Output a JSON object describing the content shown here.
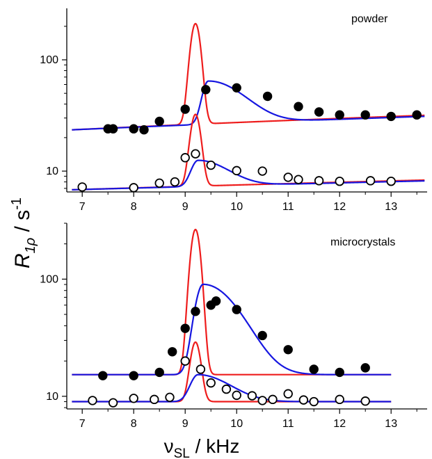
{
  "ylabel": {
    "main": "R",
    "sub": "1ρ",
    "unit_prefix": " / s",
    "unit_sup": "-1"
  },
  "xlabel": {
    "main": "ν",
    "sub": "SL",
    "unit": " / kHz"
  },
  "colors": {
    "fit_red": "#ee1c1c",
    "fit_blue": "#1616e0",
    "points": "#000000"
  },
  "chart_data": [
    {
      "type": "scatter",
      "panel": "top",
      "label": "powder",
      "x_range": [
        6.7,
        13.7
      ],
      "y_scale": "log",
      "y_range": [
        6.5,
        290
      ],
      "x_ticks": [
        "7",
        "8",
        "9",
        "10",
        "11",
        "12",
        "13"
      ],
      "y_ticks": [
        "10",
        "100"
      ],
      "series": [
        {
          "marker": "filled-circle",
          "x": [
            7.5,
            7.6,
            8.0,
            8.2,
            8.5,
            9.0,
            9.4,
            10.0,
            10.6,
            11.2,
            11.6,
            12.0,
            12.5,
            13.0,
            13.5
          ],
          "y": [
            24,
            24,
            24,
            23.5,
            28,
            36,
            54,
            56,
            47,
            38,
            34,
            32,
            32,
            31,
            32
          ]
        },
        {
          "marker": "open-circle",
          "x": [
            7.0,
            8.0,
            8.5,
            8.8,
            9.0,
            9.2,
            9.5,
            10.0,
            10.5,
            11.0,
            11.2,
            11.6,
            12.0,
            12.6,
            13.0
          ],
          "y": [
            7.2,
            7.1,
            7.8,
            8.0,
            13.2,
            14.3,
            11.3,
            10.1,
            10.0,
            8.8,
            8.4,
            8.2,
            8.1,
            8.2,
            8.1
          ]
        }
      ]
    },
    {
      "type": "scatter",
      "panel": "bottom",
      "label": "microcrystals",
      "x_range": [
        6.7,
        13.7
      ],
      "y_scale": "log",
      "y_range": [
        7.8,
        300
      ],
      "x_ticks": [
        "7",
        "8",
        "9",
        "10",
        "11",
        "12",
        "13"
      ],
      "y_ticks": [
        "10",
        "100"
      ],
      "series": [
        {
          "marker": "filled-circle",
          "x": [
            7.4,
            8.0,
            8.5,
            8.75,
            9.0,
            9.2,
            9.5,
            9.6,
            10.0,
            10.5,
            11.0,
            11.5,
            12.0,
            12.5
          ],
          "y": [
            15,
            15,
            16,
            24,
            38,
            53,
            60,
            65,
            55,
            33,
            25,
            17,
            16,
            17.5
          ]
        },
        {
          "marker": "open-circle",
          "x": [
            7.2,
            7.6,
            8.0,
            8.4,
            8.7,
            9.0,
            9.3,
            9.5,
            9.8,
            10.0,
            10.3,
            10.5,
            10.7,
            11.0,
            11.3,
            11.5,
            12.0,
            12.5
          ],
          "y": [
            9.2,
            8.8,
            9.6,
            9.4,
            9.8,
            20,
            17,
            13,
            11.5,
            10.2,
            10.1,
            9.2,
            9.4,
            10.5,
            9.3,
            9.0,
            9.4,
            9.1
          ]
        }
      ]
    }
  ]
}
